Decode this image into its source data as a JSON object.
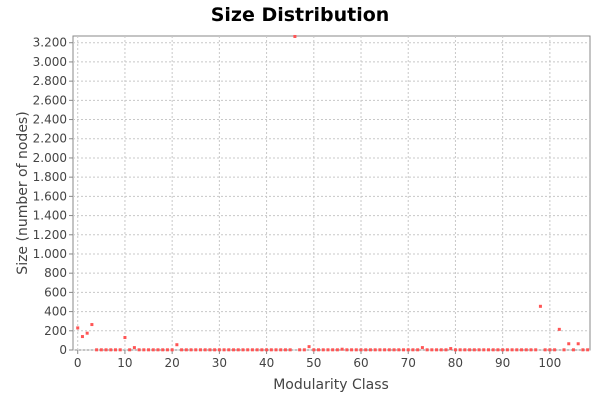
{
  "chart_data": {
    "type": "scatter",
    "title": "Size Distribution",
    "xlabel": "Modularity Class",
    "ylabel": "Size (number of nodes)",
    "xlim": [
      -1,
      108.5
    ],
    "ylim": [
      0,
      3270
    ],
    "x_ticks": [
      0,
      10,
      20,
      30,
      40,
      50,
      60,
      70,
      80,
      90,
      100
    ],
    "x_tick_labels": [
      "0",
      "10",
      "20",
      "30",
      "40",
      "50",
      "60",
      "70",
      "80",
      "90",
      "100"
    ],
    "y_ticks": [
      0,
      200,
      400,
      600,
      800,
      1000,
      1200,
      1400,
      1600,
      1800,
      2000,
      2200,
      2400,
      2600,
      2800,
      3000,
      3200
    ],
    "y_tick_labels": [
      "0",
      "200",
      "400",
      "600",
      "800",
      "1.000",
      "1.200",
      "1.400",
      "1.600",
      "1.800",
      "2.000",
      "2.200",
      "2.400",
      "2.600",
      "2.800",
      "3.000",
      "3.200"
    ],
    "grid": true,
    "marker_color": "#ff5555",
    "points": [
      [
        0,
        230
      ],
      [
        1,
        140
      ],
      [
        2,
        175
      ],
      [
        3,
        265
      ],
      [
        4,
        2
      ],
      [
        5,
        2
      ],
      [
        6,
        2
      ],
      [
        7,
        2
      ],
      [
        8,
        2
      ],
      [
        9,
        2
      ],
      [
        10,
        130
      ],
      [
        11,
        2
      ],
      [
        12,
        25
      ],
      [
        13,
        2
      ],
      [
        14,
        2
      ],
      [
        15,
        2
      ],
      [
        16,
        2
      ],
      [
        17,
        2
      ],
      [
        18,
        2
      ],
      [
        19,
        2
      ],
      [
        20,
        2
      ],
      [
        21,
        55
      ],
      [
        22,
        2
      ],
      [
        23,
        2
      ],
      [
        24,
        2
      ],
      [
        25,
        2
      ],
      [
        26,
        2
      ],
      [
        27,
        2
      ],
      [
        28,
        2
      ],
      [
        29,
        2
      ],
      [
        30,
        2
      ],
      [
        31,
        2
      ],
      [
        32,
        2
      ],
      [
        33,
        2
      ],
      [
        34,
        2
      ],
      [
        35,
        2
      ],
      [
        36,
        2
      ],
      [
        37,
        2
      ],
      [
        38,
        2
      ],
      [
        39,
        2
      ],
      [
        40,
        2
      ],
      [
        41,
        2
      ],
      [
        42,
        2
      ],
      [
        43,
        2
      ],
      [
        44,
        2
      ],
      [
        45,
        2
      ],
      [
        46,
        3265
      ],
      [
        47,
        2
      ],
      [
        48,
        2
      ],
      [
        49,
        35
      ],
      [
        50,
        2
      ],
      [
        51,
        2
      ],
      [
        52,
        2
      ],
      [
        53,
        2
      ],
      [
        54,
        2
      ],
      [
        55,
        2
      ],
      [
        56,
        8
      ],
      [
        57,
        2
      ],
      [
        58,
        2
      ],
      [
        59,
        2
      ],
      [
        60,
        2
      ],
      [
        61,
        2
      ],
      [
        62,
        2
      ],
      [
        63,
        2
      ],
      [
        64,
        2
      ],
      [
        65,
        2
      ],
      [
        66,
        2
      ],
      [
        67,
        2
      ],
      [
        68,
        2
      ],
      [
        69,
        2
      ],
      [
        70,
        2
      ],
      [
        71,
        2
      ],
      [
        72,
        2
      ],
      [
        73,
        25
      ],
      [
        74,
        2
      ],
      [
        75,
        2
      ],
      [
        76,
        2
      ],
      [
        77,
        2
      ],
      [
        78,
        2
      ],
      [
        79,
        15
      ],
      [
        80,
        2
      ],
      [
        81,
        2
      ],
      [
        82,
        2
      ],
      [
        83,
        2
      ],
      [
        84,
        2
      ],
      [
        85,
        2
      ],
      [
        86,
        2
      ],
      [
        87,
        2
      ],
      [
        88,
        2
      ],
      [
        89,
        2
      ],
      [
        90,
        2
      ],
      [
        91,
        2
      ],
      [
        92,
        2
      ],
      [
        93,
        2
      ],
      [
        94,
        2
      ],
      [
        95,
        2
      ],
      [
        96,
        2
      ],
      [
        97,
        2
      ],
      [
        98,
        455
      ],
      [
        99,
        2
      ],
      [
        100,
        2
      ],
      [
        101,
        2
      ],
      [
        102,
        215
      ],
      [
        103,
        2
      ],
      [
        104,
        65
      ],
      [
        105,
        2
      ],
      [
        106,
        65
      ],
      [
        107,
        2
      ],
      [
        108,
        2
      ]
    ]
  }
}
